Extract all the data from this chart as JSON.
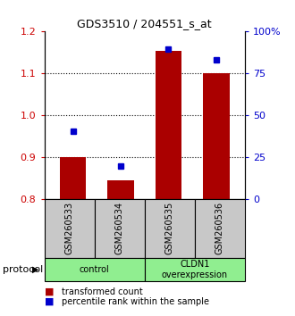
{
  "title": "GDS3510 / 204551_s_at",
  "samples": [
    "GSM260533",
    "GSM260534",
    "GSM260535",
    "GSM260536"
  ],
  "red_values": [
    0.9,
    0.845,
    1.155,
    1.1
  ],
  "blue_values": [
    0.963,
    0.878,
    1.158,
    1.133
  ],
  "bar_bottom": 0.8,
  "ylim": [
    0.8,
    1.2
  ],
  "yticks_left": [
    0.8,
    0.9,
    1.0,
    1.1,
    1.2
  ],
  "yticks_right": [
    0,
    25,
    50,
    75,
    100
  ],
  "ytick_labels_right": [
    "0",
    "25",
    "50",
    "75",
    "100%"
  ],
  "gridlines": [
    0.9,
    1.0,
    1.1
  ],
  "bar_color": "#AA0000",
  "marker_color": "#0000CC",
  "left_tick_color": "#CC0000",
  "right_tick_color": "#0000CC",
  "legend_items": [
    {
      "color": "#AA0000",
      "label": "transformed count"
    },
    {
      "color": "#0000CC",
      "label": "percentile rank within the sample"
    }
  ],
  "protocol_label": "protocol",
  "x_positions": [
    1,
    2,
    3,
    4
  ],
  "bar_width": 0.55,
  "xlim": [
    0.4,
    4.6
  ],
  "sample_box_color": "#C8C8C8",
  "group_box_color": "#90EE90",
  "groups": [
    {
      "start": 0,
      "end": 2,
      "label": "control"
    },
    {
      "start": 2,
      "end": 4,
      "label": "CLDN1\noverexpression"
    }
  ]
}
